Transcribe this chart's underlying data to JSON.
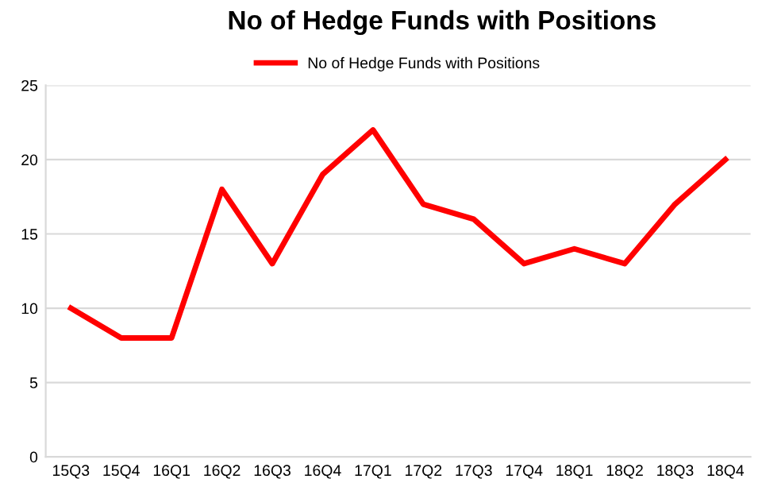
{
  "chart_data": {
    "type": "line",
    "title": "No of Hedge Funds with Positions",
    "categories": [
      "15Q3",
      "15Q4",
      "16Q1",
      "16Q2",
      "16Q3",
      "16Q4",
      "17Q1",
      "17Q2",
      "17Q3",
      "17Q4",
      "18Q1",
      "18Q2",
      "18Q3",
      "18Q4"
    ],
    "series": [
      {
        "name": "No of Hedge Funds with Positions",
        "color": "#ff0000",
        "values": [
          10,
          8,
          8,
          18,
          13,
          19,
          22,
          17,
          16,
          13,
          14,
          13,
          17,
          20
        ]
      }
    ],
    "ylim": [
      0,
      25
    ],
    "yticks": [
      0,
      5,
      10,
      15,
      20,
      25
    ],
    "grid": "y",
    "legend": "top",
    "marker": "none",
    "line_style": "solid"
  }
}
